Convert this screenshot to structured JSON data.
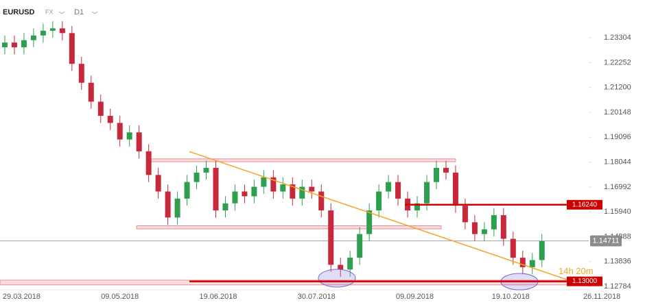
{
  "header": {
    "symbol": "EURUSD",
    "market": "FX",
    "timeframe": "D1"
  },
  "chart_data": {
    "type": "candlestick",
    "xlim": [
      "2018-03-20",
      "2018-12-14"
    ],
    "xticks": [
      {
        "value": "2018-03-29",
        "label": "29.03.2018"
      },
      {
        "value": "2018-05-09",
        "label": "09.05.2018"
      },
      {
        "value": "2018-06-19",
        "label": "19.06.2018"
      },
      {
        "value": "2018-07-30",
        "label": "30.07.2018"
      },
      {
        "value": "2018-09-09",
        "label": "09.09.2018"
      },
      {
        "value": "2018-10-19",
        "label": "19.10.2018"
      },
      {
        "value": "2018-11-26",
        "label": "26.11.2018"
      }
    ],
    "ylim": [
      1.1264,
      1.249
    ],
    "yticks": [
      1.23304,
      1.22252,
      {
        "value": 1.212,
        "label": "1.21200"
      },
      1.20148,
      1.19096,
      1.18044,
      1.16992,
      {
        "value": 1.1594,
        "label": "1.15940"
      },
      1.14888,
      1.13836,
      1.12784
    ],
    "up_color": "#2e9e4f",
    "down_color": "#c8283c",
    "x": [
      "2018-03-22",
      "2018-03-26",
      "2018-03-30",
      "2018-04-03",
      "2018-04-07",
      "2018-04-11",
      "2018-04-15",
      "2018-04-19",
      "2018-04-23",
      "2018-04-27",
      "2018-05-01",
      "2018-05-05",
      "2018-05-09",
      "2018-05-13",
      "2018-05-17",
      "2018-05-21",
      "2018-05-25",
      "2018-05-29",
      "2018-06-02",
      "2018-06-06",
      "2018-06-10",
      "2018-06-14",
      "2018-06-18",
      "2018-06-22",
      "2018-06-26",
      "2018-06-30",
      "2018-07-04",
      "2018-07-08",
      "2018-07-12",
      "2018-07-16",
      "2018-07-20",
      "2018-07-24",
      "2018-07-28",
      "2018-08-01",
      "2018-08-05",
      "2018-08-09",
      "2018-08-13",
      "2018-08-17",
      "2018-08-21",
      "2018-08-25",
      "2018-08-29",
      "2018-09-02",
      "2018-09-06",
      "2018-09-10",
      "2018-09-14",
      "2018-09-18",
      "2018-09-22",
      "2018-09-26",
      "2018-09-30",
      "2018-10-04",
      "2018-10-08",
      "2018-10-12",
      "2018-10-16",
      "2018-10-20",
      "2018-10-24",
      "2018-10-28",
      "2018-11-01"
    ],
    "open": [
      1.229,
      1.231,
      1.229,
      1.232,
      1.234,
      1.236,
      1.237,
      1.235,
      1.222,
      1.214,
      1.206,
      1.2,
      1.197,
      1.19,
      1.193,
      1.185,
      1.175,
      1.168,
      1.157,
      1.165,
      1.172,
      1.176,
      1.178,
      1.16,
      1.163,
      1.168,
      1.166,
      1.17,
      1.174,
      1.168,
      1.171,
      1.165,
      1.17,
      1.168,
      1.16,
      1.137,
      1.135,
      1.14,
      1.15,
      1.16,
      1.168,
      1.172,
      1.165,
      1.16,
      1.163,
      1.172,
      1.178,
      1.176,
      1.162,
      1.155,
      1.15,
      1.152,
      1.158,
      1.148,
      1.14,
      1.136,
      1.139
    ],
    "high": [
      1.234,
      1.234,
      1.235,
      1.237,
      1.239,
      1.24,
      1.24,
      1.238,
      1.225,
      1.217,
      1.209,
      1.203,
      1.2,
      1.196,
      1.196,
      1.188,
      1.178,
      1.171,
      1.168,
      1.175,
      1.179,
      1.181,
      1.181,
      1.166,
      1.171,
      1.171,
      1.173,
      1.177,
      1.177,
      1.174,
      1.174,
      1.173,
      1.173,
      1.171,
      1.163,
      1.14,
      1.143,
      1.153,
      1.163,
      1.171,
      1.175,
      1.175,
      1.168,
      1.166,
      1.175,
      1.181,
      1.181,
      1.179,
      1.165,
      1.158,
      1.155,
      1.161,
      1.161,
      1.151,
      1.143,
      1.142,
      1.15
    ],
    "low": [
      1.226,
      1.226,
      1.226,
      1.229,
      1.231,
      1.233,
      1.232,
      1.219,
      1.211,
      1.203,
      1.197,
      1.194,
      1.187,
      1.187,
      1.182,
      1.172,
      1.165,
      1.154,
      1.154,
      1.162,
      1.169,
      1.173,
      1.157,
      1.157,
      1.16,
      1.163,
      1.163,
      1.167,
      1.165,
      1.165,
      1.162,
      1.162,
      1.165,
      1.157,
      1.134,
      1.132,
      1.132,
      1.137,
      1.147,
      1.157,
      1.165,
      1.162,
      1.157,
      1.157,
      1.16,
      1.169,
      1.173,
      1.159,
      1.152,
      1.147,
      1.147,
      1.149,
      1.145,
      1.137,
      1.133,
      1.133,
      1.136
    ],
    "close": [
      1.231,
      1.229,
      1.232,
      1.234,
      1.236,
      1.237,
      1.235,
      1.222,
      1.214,
      1.206,
      1.2,
      1.197,
      1.19,
      1.193,
      1.185,
      1.175,
      1.168,
      1.157,
      1.165,
      1.172,
      1.176,
      1.178,
      1.16,
      1.163,
      1.168,
      1.166,
      1.17,
      1.174,
      1.168,
      1.171,
      1.165,
      1.17,
      1.168,
      1.16,
      1.137,
      1.135,
      1.14,
      1.15,
      1.16,
      1.168,
      1.172,
      1.165,
      1.16,
      1.163,
      1.172,
      1.178,
      1.176,
      1.162,
      1.155,
      1.15,
      1.152,
      1.158,
      1.148,
      1.14,
      1.136,
      1.139,
      1.147
    ],
    "current_price": 1.14711,
    "levels": [
      {
        "value": 1.1624,
        "label": "1.16240",
        "from": "2018-09-05"
      },
      {
        "value": 1.13,
        "label": "1.13000",
        "from": "2018-06-07"
      }
    ],
    "zones": [
      {
        "from": "2018-05-22",
        "to": "2018-09-26",
        "low": 1.1806,
        "high": 1.1818
      },
      {
        "from": "2018-05-16",
        "to": "2018-09-20",
        "low": 1.1522,
        "high": 1.1535
      },
      {
        "from": "2018-03-20",
        "to": "2018-11-13",
        "low": 1.1285,
        "high": 1.1305
      }
    ],
    "trendline": {
      "x": [
        "2018-06-07",
        "2018-11-13"
      ],
      "y": [
        1.1849,
        1.1302
      ]
    },
    "countdown": "14h 20m"
  }
}
